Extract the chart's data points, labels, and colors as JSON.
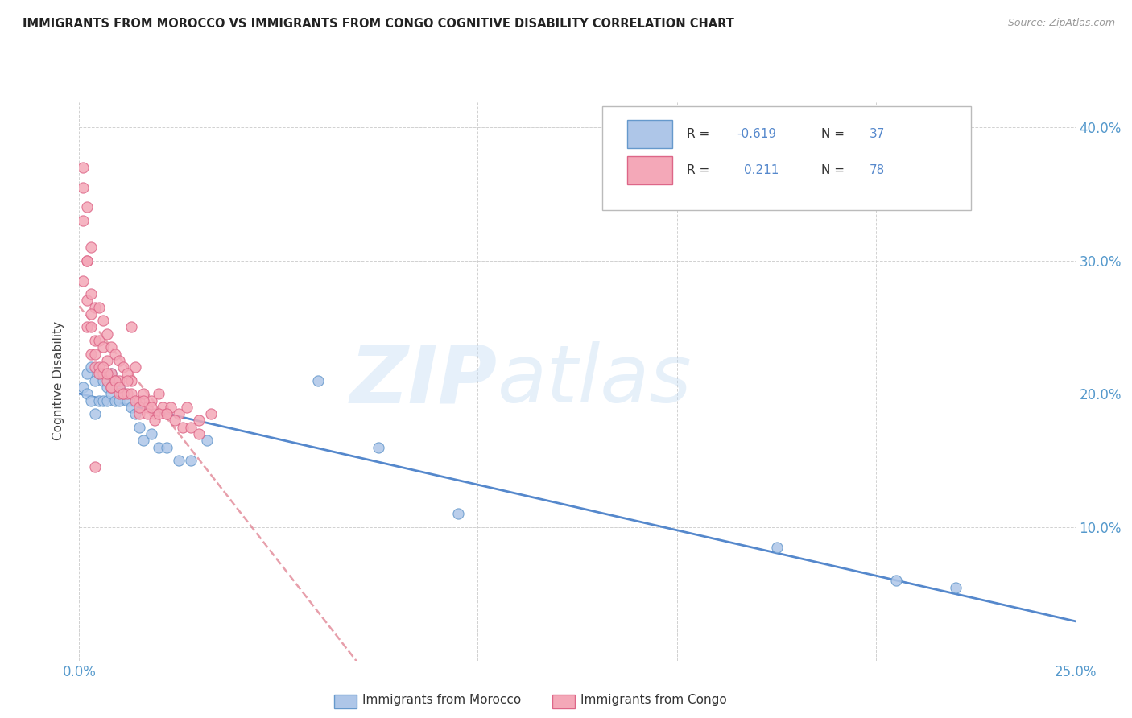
{
  "title": "IMMIGRANTS FROM MOROCCO VS IMMIGRANTS FROM CONGO COGNITIVE DISABILITY CORRELATION CHART",
  "source": "Source: ZipAtlas.com",
  "ylabel": "Cognitive Disability",
  "xlim": [
    0.0,
    0.25
  ],
  "ylim": [
    0.0,
    0.42
  ],
  "morocco_color": "#aec6e8",
  "congo_color": "#f4a8b8",
  "morocco_edge": "#6699cc",
  "congo_edge": "#dd6688",
  "trendline_morocco_color": "#5588cc",
  "trendline_congo_color": "#dd7788",
  "watermark_zip": "ZIP",
  "watermark_atlas": "atlas",
  "legend_R_morocco": "-0.619",
  "legend_N_morocco": "37",
  "legend_R_congo": "0.211",
  "legend_N_congo": "78",
  "morocco_x": [
    0.001,
    0.002,
    0.002,
    0.003,
    0.003,
    0.004,
    0.004,
    0.005,
    0.005,
    0.006,
    0.006,
    0.007,
    0.007,
    0.008,
    0.008,
    0.009,
    0.009,
    0.01,
    0.01,
    0.011,
    0.012,
    0.013,
    0.014,
    0.015,
    0.016,
    0.018,
    0.02,
    0.022,
    0.025,
    0.028,
    0.032,
    0.06,
    0.075,
    0.095,
    0.175,
    0.205,
    0.22
  ],
  "morocco_y": [
    0.205,
    0.215,
    0.2,
    0.22,
    0.195,
    0.21,
    0.185,
    0.215,
    0.195,
    0.21,
    0.195,
    0.205,
    0.195,
    0.215,
    0.2,
    0.21,
    0.195,
    0.205,
    0.195,
    0.2,
    0.195,
    0.19,
    0.185,
    0.175,
    0.165,
    0.17,
    0.16,
    0.16,
    0.15,
    0.15,
    0.165,
    0.21,
    0.16,
    0.11,
    0.085,
    0.06,
    0.055
  ],
  "congo_x": [
    0.001,
    0.001,
    0.001,
    0.002,
    0.002,
    0.002,
    0.002,
    0.003,
    0.003,
    0.003,
    0.003,
    0.004,
    0.004,
    0.004,
    0.005,
    0.005,
    0.005,
    0.006,
    0.006,
    0.006,
    0.007,
    0.007,
    0.007,
    0.008,
    0.008,
    0.008,
    0.009,
    0.009,
    0.01,
    0.01,
    0.01,
    0.011,
    0.011,
    0.012,
    0.012,
    0.013,
    0.013,
    0.014,
    0.015,
    0.015,
    0.016,
    0.017,
    0.018,
    0.019,
    0.02,
    0.021,
    0.022,
    0.023,
    0.025,
    0.027,
    0.03,
    0.033,
    0.004,
    0.005,
    0.006,
    0.007,
    0.008,
    0.009,
    0.01,
    0.011,
    0.012,
    0.013,
    0.014,
    0.015,
    0.016,
    0.017,
    0.018,
    0.019,
    0.02,
    0.022,
    0.024,
    0.026,
    0.028,
    0.03,
    0.001,
    0.002,
    0.003,
    0.004
  ],
  "congo_y": [
    0.355,
    0.33,
    0.285,
    0.34,
    0.3,
    0.27,
    0.25,
    0.31,
    0.275,
    0.25,
    0.23,
    0.265,
    0.24,
    0.22,
    0.265,
    0.24,
    0.22,
    0.255,
    0.235,
    0.215,
    0.245,
    0.225,
    0.21,
    0.235,
    0.215,
    0.205,
    0.23,
    0.21,
    0.225,
    0.21,
    0.2,
    0.22,
    0.2,
    0.215,
    0.2,
    0.25,
    0.21,
    0.22,
    0.195,
    0.185,
    0.2,
    0.19,
    0.195,
    0.185,
    0.2,
    0.19,
    0.185,
    0.19,
    0.185,
    0.19,
    0.18,
    0.185,
    0.23,
    0.215,
    0.22,
    0.215,
    0.205,
    0.21,
    0.205,
    0.2,
    0.21,
    0.2,
    0.195,
    0.19,
    0.195,
    0.185,
    0.19,
    0.18,
    0.185,
    0.185,
    0.18,
    0.175,
    0.175,
    0.17,
    0.37,
    0.3,
    0.26,
    0.145
  ]
}
